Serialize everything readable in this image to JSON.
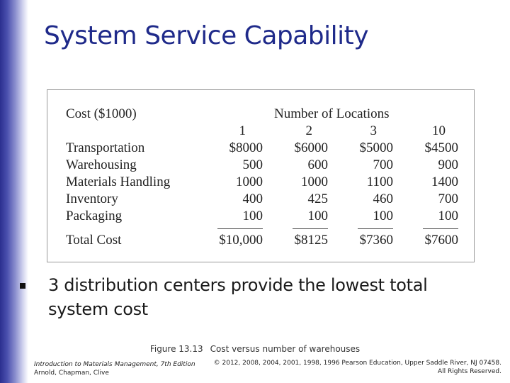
{
  "slide": {
    "title": "System Service Capability"
  },
  "table": {
    "cost_header": "Cost ($1000)",
    "locations_header": "Number of Locations",
    "columns": [
      "1",
      "2",
      "3",
      "10"
    ],
    "rows": [
      {
        "label": "Transportation",
        "values": [
          "$8000",
          "$6000",
          "$5000",
          "$4500"
        ]
      },
      {
        "label": "Warehousing",
        "values": [
          "500",
          "600",
          "700",
          "900"
        ]
      },
      {
        "label": "Materials Handling",
        "values": [
          "1000",
          "1000",
          "1100",
          "1400"
        ]
      },
      {
        "label": "Inventory",
        "values": [
          "400",
          "425",
          "460",
          "700"
        ]
      },
      {
        "label": "Packaging",
        "values": [
          "100",
          "100",
          "100",
          "100"
        ]
      }
    ],
    "total": {
      "label": "Total Cost",
      "values": [
        "$10,000",
        "$8125",
        "$7360",
        "$7600"
      ]
    }
  },
  "bullet": {
    "text": "3 distribution centers provide the lowest total system cost"
  },
  "caption": {
    "figure_number": "Figure 13.13",
    "text": "Cost versus number of warehouses"
  },
  "footer": {
    "book_title": "Introduction to Materials Management, 7th Edition",
    "authors": "Arnold, Chapman, Clive",
    "copyright": "© 2012, 2008, 2004, 2001, 1998, 1996 Pearson Education, Upper Saddle River, NJ 07458.",
    "rights": "All Rights Reserved."
  }
}
